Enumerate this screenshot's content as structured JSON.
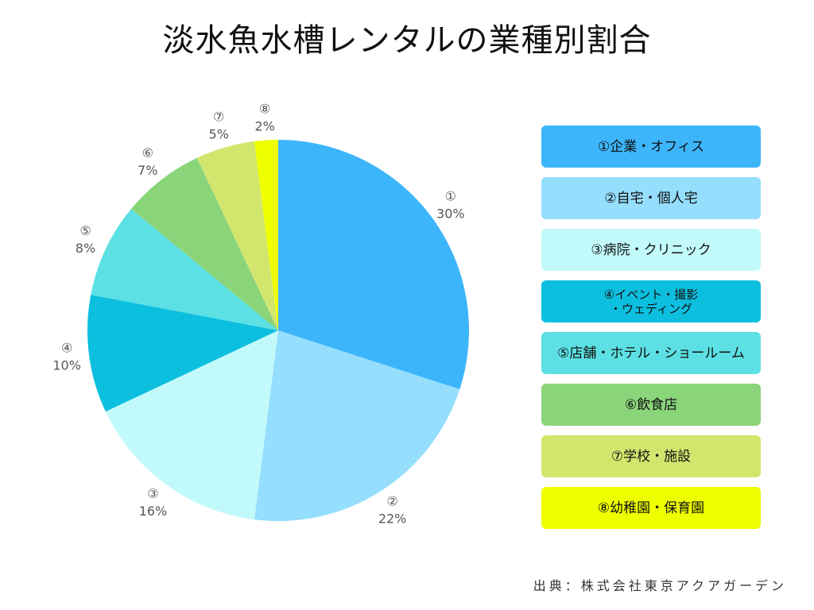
{
  "title": "淡水魚水槽レンタルの業種別割合",
  "source": "出典：株式会社東京アクアガーデン",
  "chart_data": {
    "type": "pie",
    "title": "淡水魚水槽レンタルの業種別割合",
    "slices": [
      {
        "marker": "①",
        "name": "①企業・オフィス",
        "value": 30,
        "label": "30%",
        "color": "#3db5fb"
      },
      {
        "marker": "②",
        "name": "②自宅・個人宅",
        "value": 22,
        "label": "22%",
        "color": "#95defd"
      },
      {
        "marker": "③",
        "name": "③病院・クリニック",
        "value": 16,
        "label": "16%",
        "color": "#c2fafb"
      },
      {
        "marker": "④",
        "name": "④イベント・撮影\n・ウェディング",
        "value": 10,
        "label": "10%",
        "color": "#0cbfdf"
      },
      {
        "marker": "⑤",
        "name": "⑤店舗・ホテル・ショールーム",
        "value": 8,
        "label": "8%",
        "color": "#5ce0e3"
      },
      {
        "marker": "⑥",
        "name": "⑥飲食店",
        "value": 7,
        "label": "7%",
        "color": "#8ad47a"
      },
      {
        "marker": "⑦",
        "name": "⑦学校・施設",
        "value": 5,
        "label": "5%",
        "color": "#d2e66e"
      },
      {
        "marker": "⑧",
        "name": "⑧幼稚園・保育園",
        "value": 2,
        "label": "2%",
        "color": "#eeff00"
      }
    ],
    "legend_position": "right"
  }
}
